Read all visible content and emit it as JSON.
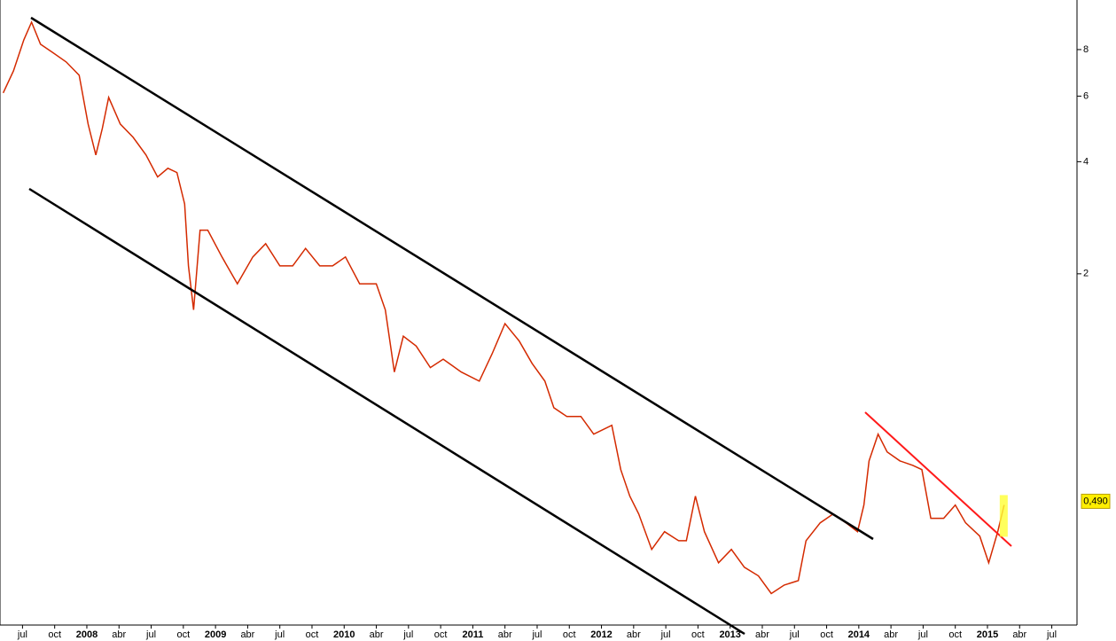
{
  "chart_data": {
    "type": "line",
    "log_scale": true,
    "color": "#d42a00",
    "x": [
      2007.35,
      2007.43,
      2007.51,
      2007.57,
      2007.64,
      2007.74,
      2007.84,
      2007.94,
      2008.01,
      2008.07,
      2008.12,
      2008.17,
      2008.26,
      2008.36,
      2008.46,
      2008.55,
      2008.63,
      2008.7,
      2008.76,
      2008.79,
      2008.83,
      2008.88,
      2008.94,
      2009.05,
      2009.17,
      2009.29,
      2009.39,
      2009.5,
      2009.6,
      2009.7,
      2009.81,
      2009.91,
      2010.01,
      2010.12,
      2010.25,
      2010.32,
      2010.39,
      2010.46,
      2010.56,
      2010.67,
      2010.77,
      2010.91,
      2011.05,
      2011.15,
      2011.25,
      2011.36,
      2011.46,
      2011.56,
      2011.63,
      2011.73,
      2011.84,
      2011.94,
      2012.08,
      2012.15,
      2012.22,
      2012.29,
      2012.39,
      2012.49,
      2012.6,
      2012.66,
      2012.73,
      2012.8,
      2012.91,
      2013.01,
      2013.11,
      2013.22,
      2013.32,
      2013.42,
      2013.53,
      2013.59,
      2013.7,
      2013.8,
      2013.9,
      2013.99,
      2014.04,
      2014.08,
      2014.15,
      2014.22,
      2014.32,
      2014.42,
      2014.49,
      2014.56,
      2014.66,
      2014.75,
      2014.83,
      2014.94,
      2015.01,
      2015.08,
      2015.13
    ],
    "values": [
      6.12,
      7.01,
      8.5,
      9.48,
      8.27,
      7.83,
      7.41,
      6.83,
      5.05,
      4.17,
      4.91,
      5.95,
      5.05,
      4.65,
      4.17,
      3.64,
      3.84,
      3.74,
      3.08,
      2.1,
      1.6,
      2.62,
      2.62,
      2.22,
      1.88,
      2.22,
      2.41,
      2.1,
      2.1,
      2.34,
      2.1,
      2.1,
      2.22,
      1.88,
      1.88,
      1.6,
      1.09,
      1.36,
      1.28,
      1.12,
      1.18,
      1.09,
      1.03,
      1.22,
      1.47,
      1.32,
      1.15,
      1.03,
      0.874,
      0.828,
      0.828,
      0.742,
      0.784,
      0.596,
      0.506,
      0.453,
      0.364,
      0.406,
      0.384,
      0.384,
      0.506,
      0.406,
      0.335,
      0.364,
      0.326,
      0.309,
      0.277,
      0.292,
      0.3,
      0.384,
      0.429,
      0.453,
      0.429,
      0.406,
      0.479,
      0.629,
      0.742,
      0.665,
      0.629,
      0.612,
      0.596,
      0.441,
      0.441,
      0.479,
      0.429,
      0.395,
      0.335,
      0.406,
      0.479
    ],
    "xlim": [
      2007.325,
      2015.696
    ],
    "xticks": [
      {
        "value": 2007.5,
        "label": "jul"
      },
      {
        "value": 2007.75,
        "label": "oct"
      },
      2008,
      {
        "value": 2008.25,
        "label": "abr"
      },
      {
        "value": 2008.5,
        "label": "jul"
      },
      {
        "value": 2008.75,
        "label": "oct"
      },
      2009,
      {
        "value": 2009.25,
        "label": "abr"
      },
      {
        "value": 2009.5,
        "label": "jul"
      },
      {
        "value": 2009.75,
        "label": "oct"
      },
      2010,
      {
        "value": 2010.25,
        "label": "abr"
      },
      {
        "value": 2010.5,
        "label": "jul"
      },
      {
        "value": 2010.75,
        "label": "oct"
      },
      2011,
      {
        "value": 2011.25,
        "label": "abr"
      },
      {
        "value": 2011.5,
        "label": "jul"
      },
      {
        "value": 2011.75,
        "label": "oct"
      },
      2012,
      {
        "value": 2012.25,
        "label": "abr"
      },
      {
        "value": 2012.5,
        "label": "jul"
      },
      {
        "value": 2012.75,
        "label": "oct"
      },
      2013,
      {
        "value": 2013.25,
        "label": "abr"
      },
      {
        "value": 2013.5,
        "label": "jul"
      },
      {
        "value": 2013.75,
        "label": "oct"
      },
      2014,
      {
        "value": 2014.25,
        "label": "abr"
      },
      {
        "value": 2014.5,
        "label": "jul"
      },
      {
        "value": 2014.75,
        "label": "oct"
      },
      2015,
      {
        "value": 2015.25,
        "label": "abr"
      },
      {
        "value": 2015.5,
        "label": "jul"
      }
    ],
    "ylim": [
      0.228,
      10.87
    ],
    "yticks": [
      8,
      6,
      4,
      2
    ],
    "last_price": {
      "value": 0.49,
      "label": "0,490"
    }
  }
}
